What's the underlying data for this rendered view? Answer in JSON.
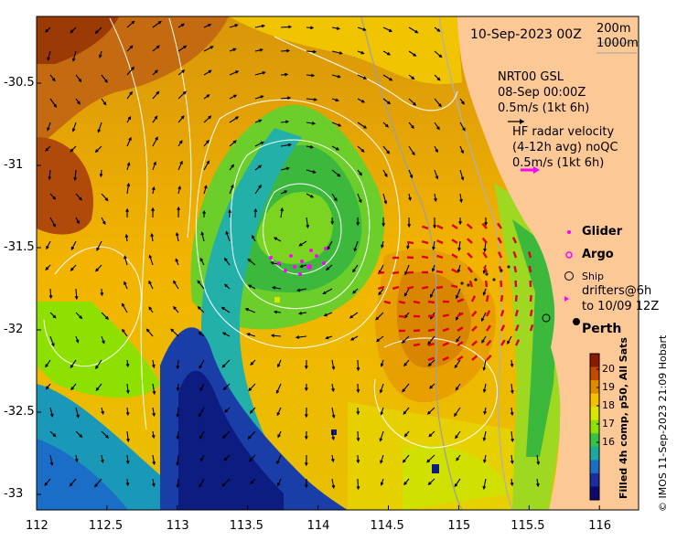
{
  "map": {
    "date_label": "10-Sep-2023 00Z",
    "depth_contours": [
      "200m",
      "1000m"
    ],
    "altimetry": {
      "title": "NRT00 GSL",
      "time": "08-Sep 00:00Z",
      "scale": "0.5m/s (1kt 6h)"
    },
    "hf_radar": {
      "title": "HF radar velocity",
      "subtitle": "(4-12h avg) noQC",
      "scale": "0.5m/s (1kt 6h)"
    },
    "legend": {
      "glider": "Glider",
      "argo": "Argo",
      "ship": "Ship",
      "drifters_line1": "drifters@6h",
      "drifters_line2": "to 10/09 12Z"
    },
    "city": "Perth",
    "x_ticks": [
      "112",
      "112.5",
      "113",
      "113.5",
      "114",
      "114.5",
      "115",
      "115.5",
      "116"
    ],
    "y_ticks": [
      "-30.5",
      "-31",
      "-31.5",
      "-32",
      "-32.5",
      "-33"
    ],
    "colorbar": {
      "title": "Filled 4h comp, p50, All Sats",
      "ticks": [
        "20",
        "19",
        "18",
        "17",
        "16"
      ],
      "colors": [
        "#8b1a00",
        "#c24a00",
        "#e08a00",
        "#f2c200",
        "#d8e600",
        "#8ee000",
        "#33c24a",
        "#1aa8a0",
        "#1a6ec8",
        "#1a2ea0",
        "#0a0a70"
      ]
    },
    "credit": "© IMOS 11-Sep-2023 21:09 Hobart",
    "colors": {
      "land": "#fcc896",
      "glider": "#ff00ff",
      "hf_arrow": "#ff00ff",
      "current_red": "#e0001a"
    }
  }
}
